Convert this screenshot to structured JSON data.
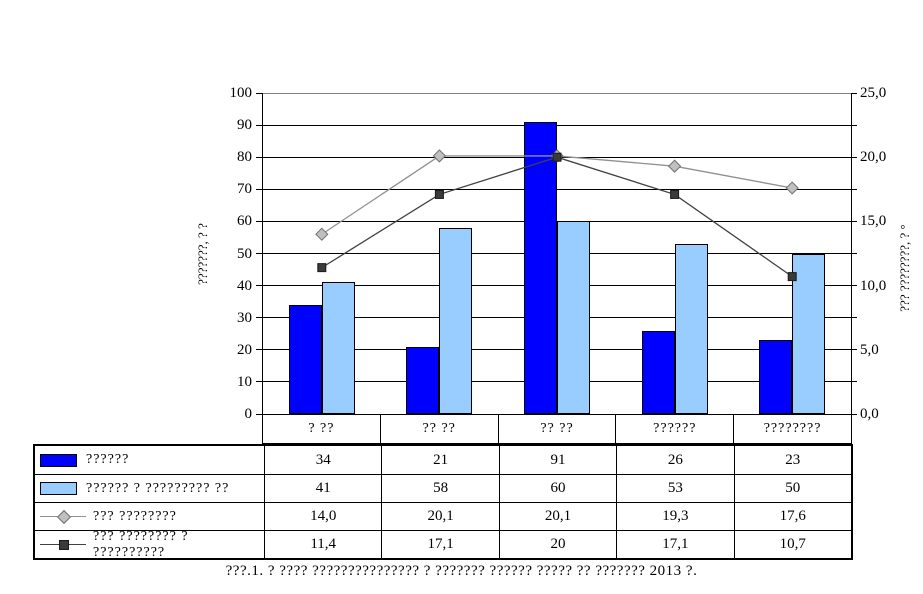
{
  "caption": "???.1. ? ???? ??????????????? ? ??????? ?????? ????? ??  ??????? 2013 ?.",
  "chart_data": {
    "type": "combo-bar-line",
    "categories": [
      "? ??",
      "?? ??",
      "?? ??",
      "??????",
      "????????"
    ],
    "series": [
      {
        "name": "??????",
        "type": "bar",
        "axis": "left",
        "color": "#0000FF",
        "values": [
          34,
          21,
          91,
          26,
          23
        ],
        "display": [
          "34",
          "21",
          "91",
          "26",
          "23"
        ]
      },
      {
        "name": "?????? ? ????????? ??",
        "type": "bar",
        "axis": "left",
        "color": "#99CCFF",
        "values": [
          41,
          58,
          60,
          53,
          50
        ],
        "display": [
          "41",
          "58",
          "60",
          "53",
          "50"
        ]
      },
      {
        "name": "??? ????????",
        "type": "line",
        "marker": "diamond",
        "axis": "right",
        "color": "#909090",
        "marker_fill": "#C0C0C0",
        "marker_stroke": "#707070",
        "values": [
          14.0,
          20.1,
          20.1,
          19.3,
          17.6
        ],
        "display": [
          "14,0",
          "20,1",
          "20,1",
          "19,3",
          "17,6"
        ]
      },
      {
        "name": "??? ???????? ? ??????????",
        "type": "line",
        "marker": "square",
        "axis": "right",
        "color": "#404040",
        "marker_fill": "#3A3A3A",
        "marker_stroke": "#1A1A1A",
        "values": [
          11.4,
          17.1,
          20,
          17.1,
          10.7
        ],
        "display": [
          "11,4",
          "17,1",
          "20",
          "17,1",
          "10,7"
        ]
      }
    ],
    "left_axis": {
      "title": "???????, ? ?",
      "min": 0,
      "max": 100,
      "step": 10,
      "tick_labels": [
        "0",
        "10",
        "20",
        "30",
        "40",
        "50",
        "60",
        "70",
        "80",
        "90",
        "100"
      ]
    },
    "right_axis": {
      "title": "??? ????????, ? °",
      "min": 0,
      "max": 25,
      "step": 5,
      "tick_labels": [
        "0,0",
        "5,0",
        "10,0",
        "15,0",
        "20,0",
        "25,0"
      ]
    },
    "grid": true,
    "legend_position": "table-left"
  }
}
